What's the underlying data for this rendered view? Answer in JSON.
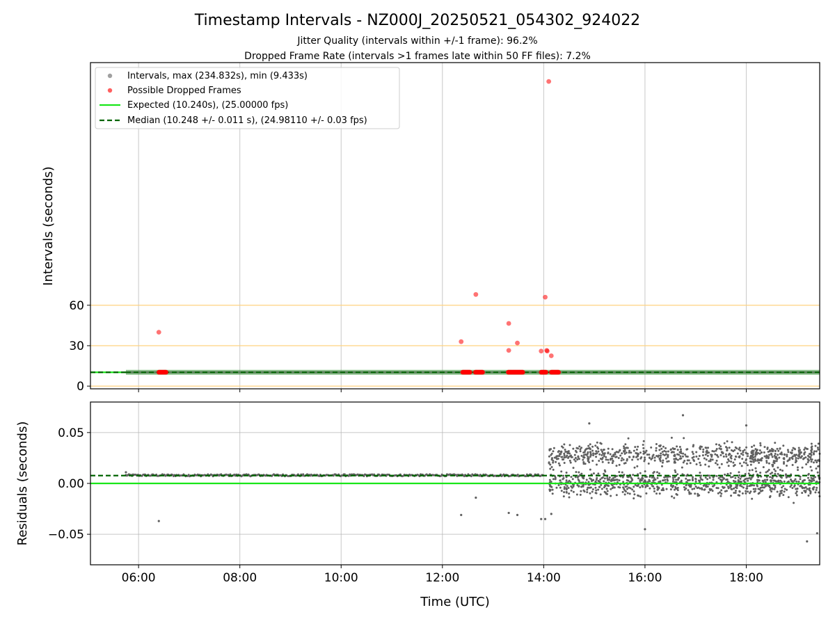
{
  "colors": {
    "background": "#ffffff",
    "grid": "#b0b0b0",
    "reference_lines": "#ffd27f",
    "intervals": "#808080",
    "dropped": "#ff0000",
    "expected": "#19e619",
    "median": "#006400",
    "residual_points": "#606060"
  },
  "chart_data": [
    {
      "type": "scatter",
      "title": "Timestamp Intervals - NZ000J_20250521_054302_924022",
      "subtitle_lines": [
        "Jitter Quality (intervals within +/-1 frame): 96.2%",
        "Dropped Frame Rate (intervals >1 frames late within 50 FF files): 7.2%"
      ],
      "xlabel": "",
      "ylabel": "Intervals (seconds)",
      "x_units": "hours UTC",
      "xlim": [
        5.05,
        19.45
      ],
      "ylim": [
        -2,
        240
      ],
      "x_ticks": [
        6,
        8,
        10,
        12,
        14,
        16,
        18
      ],
      "x_tick_labels": [
        "06:00",
        "08:00",
        "10:00",
        "12:00",
        "14:00",
        "16:00",
        "18:00"
      ],
      "y_ticks": [
        0,
        30,
        60
      ],
      "y_tick_labels": [
        "0",
        "30",
        "60"
      ],
      "grid": "vertical",
      "reference_lines_y": [
        0,
        30,
        60
      ],
      "legend_position": "upper-left",
      "legend": [
        {
          "label": "Intervals, max (234.832s), min (9.433s)",
          "marker": "dot",
          "color": "#a0a0a0"
        },
        {
          "label": "Possible Dropped Frames",
          "marker": "dot",
          "color": "#ff6060"
        },
        {
          "label": "Expected (10.240s), (25.00000 fps)",
          "marker": "solid-line",
          "color": "#19e619"
        },
        {
          "label": "Median (10.248 +/- 0.011 s), (24.98110 +/- 0.03 fps)",
          "marker": "dashed-line",
          "color": "#006400"
        }
      ],
      "series": [
        {
          "name": "Intervals, max (234.832s), min (9.433s)",
          "description": "dense band of intervals at about 10.25 s spanning the whole night",
          "x_range": [
            5.75,
            19.45
          ],
          "y": 10.25
        },
        {
          "name": "Possible Dropped Frames",
          "points": [
            [
              6.4,
              40.0
            ],
            [
              12.37,
              33.0
            ],
            [
              12.66,
              68.0
            ],
            [
              13.31,
              46.5
            ],
            [
              13.31,
              26.5
            ],
            [
              13.48,
              32.0
            ],
            [
              13.95,
              26.0
            ],
            [
              14.03,
              66.0
            ],
            [
              14.06,
              26.5
            ],
            [
              14.07,
              26.0
            ],
            [
              14.1,
              226.0
            ],
            [
              14.15,
              22.5
            ]
          ],
          "clusters_near_y": 10.3,
          "cluster_x_ranges": [
            [
              6.4,
              6.55
            ],
            [
              12.4,
              12.55
            ],
            [
              12.65,
              12.8
            ],
            [
              13.3,
              13.6
            ],
            [
              13.95,
              14.05
            ],
            [
              14.15,
              14.3
            ]
          ]
        },
        {
          "name": "Expected (10.240s), (25.00000 fps)",
          "y": 10.24
        },
        {
          "name": "Median (10.248 +/- 0.011 s), (24.98110 +/- 0.03 fps)",
          "y": 10.248
        }
      ]
    },
    {
      "type": "scatter",
      "title": "",
      "xlabel": "Time (UTC)",
      "ylabel": "Residuals (seconds)",
      "x_units": "hours UTC",
      "xlim": [
        5.05,
        19.45
      ],
      "ylim": [
        -0.08,
        0.08
      ],
      "x_ticks": [
        6,
        8,
        10,
        12,
        14,
        16,
        18
      ],
      "x_tick_labels": [
        "06:00",
        "08:00",
        "10:00",
        "12:00",
        "14:00",
        "16:00",
        "18:00"
      ],
      "y_ticks": [
        0.05,
        0.0,
        -0.05
      ],
      "y_tick_labels": [
        "0.05",
        "0.00",
        "−0.05"
      ],
      "grid": "both",
      "lines": {
        "expected": 0.0,
        "median": 0.0077
      },
      "series": [
        {
          "name": "residuals",
          "description": "tight cluster near 0.008 before 14:00, then scatter between about -0.04 and 0.05 until the end",
          "before_14": {
            "x_range": [
              5.75,
              14.0
            ],
            "y": 0.008
          },
          "after_14": {
            "x_range": [
              14.1,
              19.45
            ],
            "y_range": [
              -0.035,
              0.048
            ]
          },
          "outliers": [
            [
              5.75,
              0.011
            ],
            [
              6.4,
              -0.037
            ],
            [
              12.37,
              -0.031
            ],
            [
              12.66,
              -0.014
            ],
            [
              13.31,
              -0.029
            ],
            [
              13.48,
              -0.031
            ],
            [
              13.95,
              -0.035
            ],
            [
              14.03,
              -0.035
            ],
            [
              14.15,
              -0.03
            ],
            [
              16.0,
              -0.045
            ],
            [
              16.75,
              0.067
            ],
            [
              19.2,
              -0.057
            ],
            [
              19.4,
              -0.049
            ],
            [
              14.9,
              0.059
            ],
            [
              18.0,
              0.057
            ]
          ]
        }
      ]
    }
  ]
}
